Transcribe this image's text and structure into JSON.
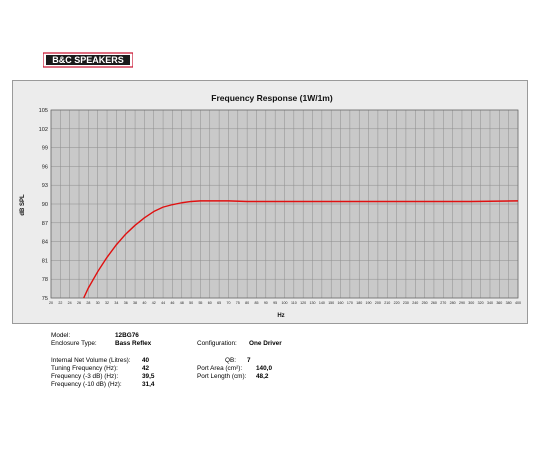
{
  "brand": {
    "logo_text": "B&C SPEAKERS"
  },
  "chart_data": {
    "type": "line",
    "title": "Frequency Response (1W/1m)",
    "xlabel": "Hz",
    "ylabel": "dB SPL",
    "ylim": [
      75,
      105
    ],
    "yticks": [
      75,
      78,
      81,
      84,
      87,
      90,
      93,
      96,
      99,
      102,
      105
    ],
    "xticks": [
      "20",
      "22",
      "24",
      "26",
      "28",
      "30",
      "32",
      "34",
      "36",
      "38",
      "40",
      "42",
      "44",
      "46",
      "48",
      "50",
      "55",
      "60",
      "65",
      "70",
      "75",
      "80",
      "85",
      "90",
      "95",
      "100",
      "110",
      "120",
      "130",
      "140",
      "150",
      "160",
      "170",
      "180",
      "190",
      "200",
      "210",
      "220",
      "230",
      "240",
      "250",
      "260",
      "270",
      "280",
      "290",
      "300",
      "320",
      "340",
      "360",
      "380",
      "400"
    ],
    "grid": true,
    "line_color": "#e01010",
    "series": [
      {
        "x": [
          27,
          28,
          30,
          32,
          34,
          36,
          38,
          40,
          42,
          44,
          46,
          48,
          50,
          55,
          60,
          65,
          70,
          80,
          100,
          150,
          200,
          300,
          400
        ],
        "values": [
          75.0,
          76.6,
          79.2,
          81.5,
          83.5,
          85.2,
          86.6,
          87.8,
          88.8,
          89.5,
          89.9,
          90.2,
          90.4,
          90.5,
          90.5,
          90.5,
          90.5,
          90.4,
          90.4,
          90.4,
          90.4,
          90.4,
          90.5
        ]
      }
    ]
  },
  "specs": {
    "model_label": "Model:",
    "model_value": "12BG76",
    "enclosure_label": "Enclosure Type:",
    "enclosure_value": "Bass Reflex",
    "configuration_label": "Configuration:",
    "configuration_value": "One Driver",
    "volume_label": "Internal Net Volume (Litres):",
    "volume_value": "40",
    "tuning_label": "Tuning Frequency (Hz):",
    "tuning_value": "42",
    "f3_label": "Frequency (-3 dB) (Hz):",
    "f3_value": "39,5",
    "f10_label": "Frequency (-10 dB) (Hz):",
    "f10_value": "31,4",
    "qb_label": "QB:",
    "qb_value": "7",
    "port_area_label": "Port Area (cm²):",
    "port_area_value": "140,0",
    "port_length_label": "Port Length (cm):",
    "port_length_value": "48,2"
  }
}
